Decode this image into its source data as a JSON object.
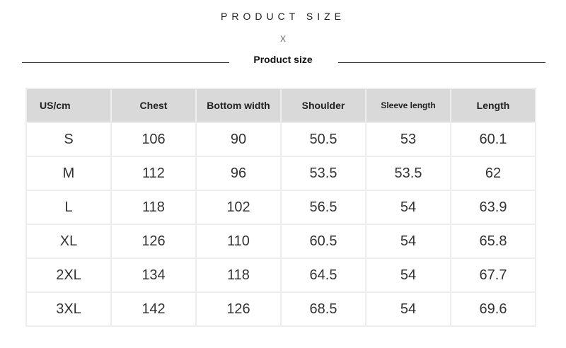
{
  "title": "PRODUCT SIZE",
  "separator": "X",
  "subtitle": "Product size",
  "table": {
    "headers": [
      "US/cm",
      "Chest",
      "Bottom width",
      "Shoulder",
      "Sleeve length",
      "Length"
    ],
    "rows": [
      [
        "S",
        "106",
        "90",
        "50.5",
        "53",
        "60.1"
      ],
      [
        "M",
        "112",
        "96",
        "53.5",
        "53.5",
        "62"
      ],
      [
        "L",
        "118",
        "102",
        "56.5",
        "54",
        "63.9"
      ],
      [
        "XL",
        "126",
        "110",
        "60.5",
        "54",
        "65.8"
      ],
      [
        "2XL",
        "134",
        "118",
        "64.5",
        "54",
        "67.7"
      ],
      [
        "3XL",
        "142",
        "126",
        "68.5",
        "54",
        "69.6"
      ]
    ]
  }
}
